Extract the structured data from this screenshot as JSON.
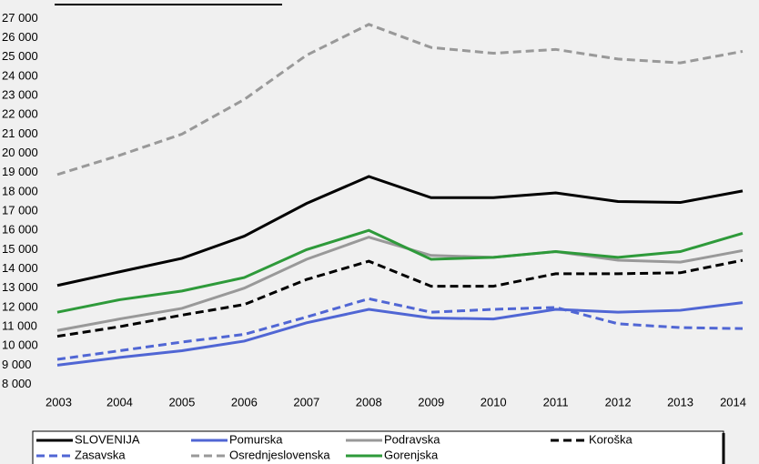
{
  "chart_data": {
    "type": "line",
    "categories": [
      "2003",
      "2004",
      "2005",
      "2006",
      "2007",
      "2008",
      "2009",
      "2010",
      "2011",
      "2012",
      "2013",
      "2014"
    ],
    "series": [
      {
        "name": "SLOVENIJA",
        "color": "#000000",
        "dashed": false,
        "values": [
          13140,
          13850,
          14550,
          15700,
          17400,
          18800,
          17700,
          17700,
          17950,
          17500,
          17450,
          18050
        ]
      },
      {
        "name": "Pomurska",
        "color": "#5066d4",
        "dashed": false,
        "values": [
          9000,
          9400,
          9750,
          10250,
          11200,
          11900,
          11450,
          11400,
          11900,
          11750,
          11850,
          12250
        ]
      },
      {
        "name": "Podravska",
        "color": "#999999",
        "dashed": false,
        "values": [
          10800,
          11400,
          11950,
          13000,
          14500,
          15650,
          14700,
          14600,
          14900,
          14450,
          14350,
          14950
        ]
      },
      {
        "name": "Koroška",
        "color": "#000000",
        "dashed": true,
        "values": [
          10500,
          11000,
          11600,
          12150,
          13450,
          14400,
          13100,
          13100,
          13750,
          13750,
          13800,
          14450
        ]
      },
      {
        "name": "Zasavska",
        "color": "#5066d4",
        "dashed": true,
        "values": [
          9300,
          9750,
          10200,
          10600,
          11500,
          12450,
          11750,
          11900,
          12000,
          11150,
          10950,
          10900
        ]
      },
      {
        "name": "Osrednjeslovenska",
        "color": "#999999",
        "dashed": true,
        "values": [
          18900,
          19900,
          21000,
          22800,
          25100,
          26700,
          25500,
          25200,
          25400,
          24900,
          24700,
          25300
        ]
      },
      {
        "name": "Gorenjska",
        "color": "#2e9a3a",
        "dashed": false,
        "values": [
          11750,
          12400,
          12850,
          13550,
          15000,
          16000,
          14500,
          14600,
          14900,
          14600,
          14900,
          15850
        ]
      }
    ],
    "ylim": [
      7600,
      27400
    ],
    "yticks": [
      {
        "value": 8000,
        "label": "8 000"
      },
      {
        "value": 9000,
        "label": "9 000"
      },
      {
        "value": 10000,
        "label": "10 000"
      },
      {
        "value": 11000,
        "label": "11 000"
      },
      {
        "value": 12000,
        "label": "12 000"
      },
      {
        "value": 13000,
        "label": "13 000"
      },
      {
        "value": 14000,
        "label": "14 000"
      },
      {
        "value": 15000,
        "label": "15 000"
      },
      {
        "value": 16000,
        "label": "16 000"
      },
      {
        "value": 17000,
        "label": "17 000"
      },
      {
        "value": 18000,
        "label": "18 000"
      },
      {
        "value": 19000,
        "label": "19 000"
      },
      {
        "value": 20000,
        "label": "20 000"
      },
      {
        "value": 21000,
        "label": "21 000"
      },
      {
        "value": 22000,
        "label": "22 000"
      },
      {
        "value": 23000,
        "label": "23 000"
      },
      {
        "value": 24000,
        "label": "24 000"
      },
      {
        "value": 25000,
        "label": "25 000"
      },
      {
        "value": 26000,
        "label": "26 000"
      },
      {
        "value": 27000,
        "label": "27 000"
      }
    ],
    "grid": false
  }
}
